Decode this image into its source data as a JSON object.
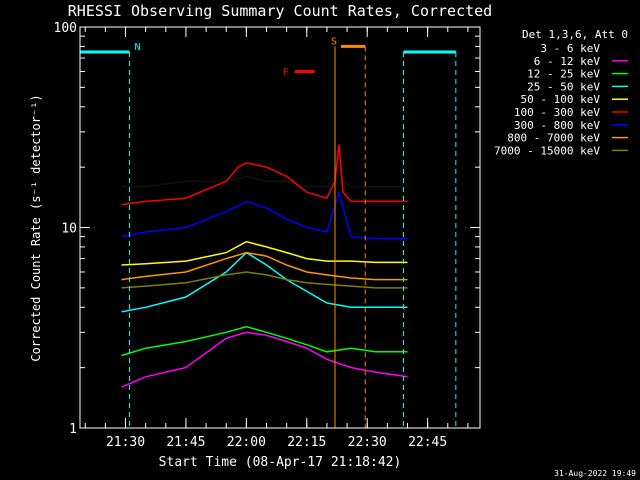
{
  "chart_data": {
    "type": "line",
    "title": "RHESSI Observing Summary Count Rates, Corrected",
    "xlabel": "Start Time (08-Apr-17 21:18:42)",
    "ylabel": "Corrected Count Rate (s⁻¹ detector⁻¹)",
    "yscale": "log",
    "ylim": [
      1,
      100
    ],
    "xlim": [
      "21:18:42",
      "22:58:00"
    ],
    "x_ticks": [
      "21:30",
      "21:45",
      "22:00",
      "22:15",
      "22:30",
      "22:45"
    ],
    "y_ticks": [
      "1",
      "10",
      "100"
    ],
    "grid": false,
    "footer": "31-Aug-2022 19:49",
    "legend": {
      "placement": "right",
      "header": "Det 1,3,6, Att 0"
    },
    "series": [
      {
        "name": "3 - 6 keV",
        "color": "#000000",
        "x": [
          "21:29",
          "21:35",
          "21:45",
          "21:55",
          "22:00",
          "22:05",
          "22:10",
          "22:15",
          "22:20",
          "22:22",
          "22:23",
          "22:24",
          "22:26",
          "22:32",
          "22:40"
        ],
        "y": [
          16,
          16,
          17,
          17,
          18,
          17,
          17,
          16,
          16,
          18,
          20,
          17,
          16,
          16,
          16
        ]
      },
      {
        "name": "6 - 12 keV",
        "color": "#ff00ff",
        "x": [
          "21:29",
          "21:35",
          "21:45",
          "21:55",
          "22:00",
          "22:05",
          "22:10",
          "22:15",
          "22:20",
          "22:26",
          "22:32",
          "22:40"
        ],
        "y": [
          1.6,
          1.8,
          2.0,
          2.8,
          3.0,
          2.9,
          2.7,
          2.5,
          2.2,
          2.0,
          1.9,
          1.8
        ]
      },
      {
        "name": "12 - 25 keV",
        "color": "#00ff00",
        "x": [
          "21:29",
          "21:35",
          "21:45",
          "21:55",
          "22:00",
          "22:05",
          "22:10",
          "22:15",
          "22:20",
          "22:26",
          "22:32",
          "22:40"
        ],
        "y": [
          2.3,
          2.5,
          2.7,
          3.0,
          3.2,
          3.0,
          2.8,
          2.6,
          2.4,
          2.5,
          2.4,
          2.4
        ]
      },
      {
        "name": "25 - 50 keV",
        "color": "#00ffff",
        "x": [
          "21:29",
          "21:35",
          "21:45",
          "21:55",
          "22:00",
          "22:05",
          "22:10",
          "22:15",
          "22:20",
          "22:26",
          "22:32",
          "22:40"
        ],
        "y": [
          3.8,
          4.0,
          4.5,
          6.0,
          7.5,
          6.5,
          5.5,
          4.8,
          4.2,
          4.0,
          4.0,
          4.0
        ]
      },
      {
        "name": "50 - 100 keV",
        "color": "#ffff00",
        "x": [
          "21:29",
          "21:35",
          "21:45",
          "21:55",
          "22:00",
          "22:05",
          "22:10",
          "22:15",
          "22:20",
          "22:26",
          "22:32",
          "22:40"
        ],
        "y": [
          6.5,
          6.6,
          6.8,
          7.5,
          8.5,
          8.0,
          7.5,
          7.0,
          6.8,
          6.8,
          6.7,
          6.7
        ]
      },
      {
        "name": "100 - 300 keV",
        "color": "#ff0000",
        "x": [
          "21:29",
          "21:35",
          "21:45",
          "21:55",
          "21:58",
          "22:00",
          "22:05",
          "22:10",
          "22:15",
          "22:20",
          "22:22",
          "22:23",
          "22:24",
          "22:26",
          "22:32",
          "22:40"
        ],
        "y": [
          13,
          13.5,
          14,
          17,
          20,
          21,
          20,
          18,
          15,
          14,
          17,
          26,
          15,
          13.5,
          13.5,
          13.5
        ]
      },
      {
        "name": "300 - 800 keV",
        "color": "#0000ff",
        "x": [
          "21:29",
          "21:35",
          "21:45",
          "21:55",
          "22:00",
          "22:05",
          "22:10",
          "22:15",
          "22:20",
          "22:23",
          "22:26",
          "22:32",
          "22:40"
        ],
        "y": [
          9,
          9.5,
          10,
          12,
          13.5,
          12.5,
          11,
          10,
          9.5,
          15,
          9,
          8.8,
          8.8
        ]
      },
      {
        "name": "800 - 7000 keV",
        "color": "#ff9900",
        "x": [
          "21:29",
          "21:35",
          "21:45",
          "21:55",
          "22:00",
          "22:05",
          "22:10",
          "22:15",
          "22:20",
          "22:26",
          "22:32",
          "22:40"
        ],
        "y": [
          5.5,
          5.7,
          6.0,
          7.0,
          7.5,
          7.2,
          6.5,
          6.0,
          5.8,
          5.6,
          5.5,
          5.5
        ]
      },
      {
        "name": "7000 - 15000 keV",
        "color": "#808000",
        "x": [
          "21:29",
          "21:35",
          "21:45",
          "21:55",
          "22:00",
          "22:05",
          "22:10",
          "22:15",
          "22:20",
          "22:26",
          "22:32",
          "22:40"
        ],
        "y": [
          5.0,
          5.1,
          5.3,
          5.8,
          6.0,
          5.8,
          5.5,
          5.3,
          5.2,
          5.1,
          5.0,
          5.0
        ]
      }
    ],
    "data_gaps": [
      {
        "start": "21:18:42",
        "end": "21:29:00"
      },
      {
        "start": "22:26:00",
        "end": "22:32:00"
      },
      {
        "start": "22:40:00",
        "end": "22:58:00"
      }
    ],
    "annotations": [
      {
        "label": "N",
        "color": "#00ffff",
        "intervals": [
          [
            "21:18:42",
            "21:31:00"
          ],
          [
            "22:39:00",
            "22:52:00"
          ]
        ],
        "level": 75,
        "boundaries": [
          "21:31:00",
          "22:39:00",
          "22:52:00"
        ]
      },
      {
        "label": "S",
        "color": "#ff8c00",
        "intervals": [
          [
            "22:23:30",
            "22:29:30"
          ]
        ],
        "level": 80,
        "boundaries": [
          "22:22:00",
          "22:29:30"
        ]
      },
      {
        "label": "F",
        "color": "#ff0000",
        "intervals": [
          [
            "22:12:00",
            "22:17:00"
          ]
        ],
        "level": 60
      }
    ]
  }
}
